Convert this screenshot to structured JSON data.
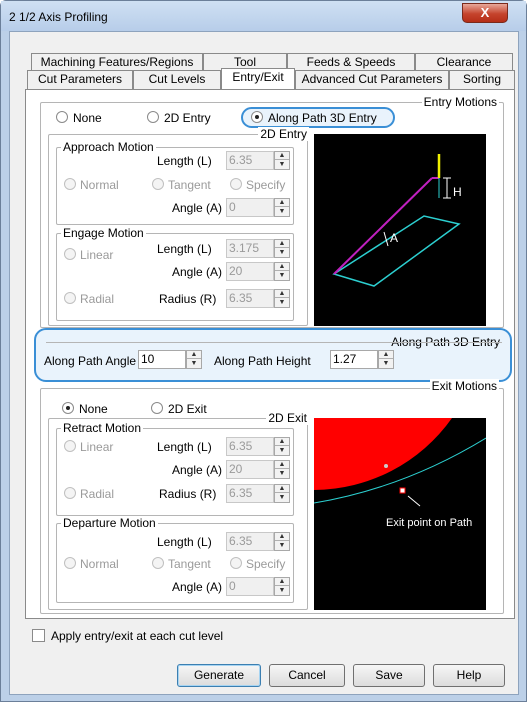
{
  "window": {
    "title": "2 1/2 Axis Profiling",
    "close_glyph": "X"
  },
  "tabs_row1": [
    "Machining Features/Regions",
    "Tool",
    "Feeds & Speeds",
    "Clearance"
  ],
  "tabs_row2": [
    "Cut Parameters",
    "Cut Levels",
    "Entry/Exit",
    "Advanced Cut Parameters",
    "Sorting"
  ],
  "entry_motions": {
    "label": "Entry Motions",
    "options": [
      "None",
      "2D Entry",
      "Along Path 3D Entry"
    ],
    "selected": "Along Path 3D Entry"
  },
  "entry_2d": {
    "label": "2D Entry",
    "approach": {
      "label": "Approach Motion",
      "length_label": "Length (L)",
      "length": "6.35",
      "options": [
        "Normal",
        "Tangent",
        "Specify"
      ],
      "angle_label": "Angle (A)",
      "angle": "0"
    },
    "engage": {
      "label": "Engage Motion",
      "linear": "Linear",
      "radial": "Radial",
      "length_label": "Length (L)",
      "length": "3.175",
      "angle_label": "Angle (A)",
      "angle": "20",
      "radius_label": "Radius (R)",
      "radius": "6.35"
    }
  },
  "entry_preview": {
    "label_h": "H",
    "label_a": "A"
  },
  "along_path": {
    "label": "Along Path 3D Entry",
    "angle_label": "Along Path Angle",
    "angle": "10",
    "height_label": "Along Path Height",
    "height": "1.27"
  },
  "exit_motions": {
    "label": "Exit Motions",
    "options": [
      "None",
      "2D Exit"
    ],
    "selected": "None"
  },
  "exit_2d": {
    "label": "2D Exit",
    "retract": {
      "label": "Retract Motion",
      "linear": "Linear",
      "radial": "Radial",
      "length_label": "Length (L)",
      "length": "6.35",
      "angle_label": "Angle (A)",
      "angle": "20",
      "radius_label": "Radius (R)",
      "radius": "6.35"
    },
    "departure": {
      "label": "Departure Motion",
      "length_label": "Length (L)",
      "length": "6.35",
      "options": [
        "Normal",
        "Tangent",
        "Specify"
      ],
      "angle_label": "Angle (A)",
      "angle": "0"
    }
  },
  "exit_preview": {
    "label": "Exit point on Path"
  },
  "apply_each_level": {
    "label": "Apply entry/exit at each cut level",
    "checked": false
  },
  "buttons": {
    "generate": "Generate",
    "cancel": "Cancel",
    "save": "Save",
    "help": "Help"
  },
  "colors": {
    "highlight": "#3a8fd6",
    "highlight_bg": "#e9f3fc",
    "cyan": "#2ccfd0",
    "magenta": "#c020c0",
    "yellow": "#f0f000",
    "red": "#ff0000"
  }
}
